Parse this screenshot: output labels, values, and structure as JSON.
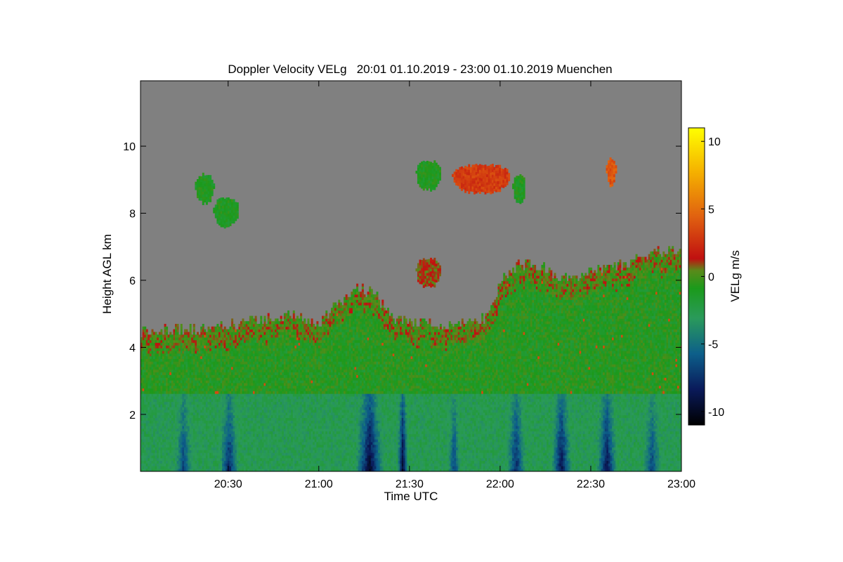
{
  "chart_data": {
    "type": "heatmap",
    "title": "Doppler Velocity VELg   20:01 01.10.2019 - 23:00 01.10.2019 Muenchen",
    "xlabel": "Time UTC",
    "ylabel": "Height AGL km",
    "x_range_minutes_utc": [
      1201,
      1380
    ],
    "y_range_km": [
      0.3,
      11.95
    ],
    "x_ticks": [
      {
        "minutes": 1230,
        "label": "20:30"
      },
      {
        "minutes": 1260,
        "label": "21:00"
      },
      {
        "minutes": 1290,
        "label": "21:30"
      },
      {
        "minutes": 1320,
        "label": "22:00"
      },
      {
        "minutes": 1350,
        "label": "22:30"
      },
      {
        "minutes": 1380,
        "label": "23:00"
      }
    ],
    "y_ticks": [
      2,
      4,
      6,
      8,
      10
    ],
    "colorbar": {
      "label": "VELg m/s",
      "range": [
        -11,
        11
      ],
      "ticks": [
        10,
        5,
        0,
        -5,
        -10
      ],
      "colors": [
        "#000000",
        "#0a1a5a",
        "#0d5f8a",
        "#2a9a5a",
        "#1b9a1b",
        "#5a8a1a",
        "#c01010",
        "#e06010",
        "#f5b000",
        "#ffff00"
      ]
    },
    "no_data_color": "#808080",
    "cloud_top_km": [
      [
        1201,
        4.4
      ],
      [
        1210,
        4.5
      ],
      [
        1220,
        4.5
      ],
      [
        1230,
        4.6
      ],
      [
        1240,
        4.8
      ],
      [
        1250,
        4.9
      ],
      [
        1255,
        4.8
      ],
      [
        1260,
        4.7
      ],
      [
        1265,
        5.2
      ],
      [
        1272,
        5.7
      ],
      [
        1278,
        5.6
      ],
      [
        1285,
        4.8
      ],
      [
        1295,
        4.7
      ],
      [
        1305,
        4.6
      ],
      [
        1315,
        4.8
      ],
      [
        1320,
        5.9
      ],
      [
        1325,
        6.4
      ],
      [
        1330,
        6.5
      ],
      [
        1335,
        6.3
      ],
      [
        1340,
        6.0
      ],
      [
        1345,
        6.1
      ],
      [
        1355,
        6.3
      ],
      [
        1365,
        6.6
      ],
      [
        1372,
        6.8
      ],
      [
        1380,
        6.9
      ]
    ],
    "downdraft_regions": [
      {
        "t_start": 1210,
        "t_end": 1220,
        "min_velocity": -7
      },
      {
        "t_start": 1225,
        "t_end": 1235,
        "min_velocity": -8
      },
      {
        "t_start": 1270,
        "t_end": 1283,
        "min_velocity": -10
      },
      {
        "t_start": 1285,
        "t_end": 1290,
        "min_velocity": -10
      },
      {
        "t_start": 1301,
        "t_end": 1308,
        "min_velocity": -7
      },
      {
        "t_start": 1320,
        "t_end": 1330,
        "min_velocity": -8
      },
      {
        "t_start": 1335,
        "t_end": 1345,
        "min_velocity": -9
      },
      {
        "t_start": 1350,
        "t_end": 1360,
        "min_velocity": -9
      },
      {
        "t_start": 1365,
        "t_end": 1375,
        "min_velocity": -7
      }
    ],
    "upper_cloud_patches": [
      {
        "t_start": 1219,
        "t_end": 1225,
        "h_km": 8.8,
        "velocity": -1
      },
      {
        "t_start": 1225,
        "t_end": 1233,
        "h_km": 8.1,
        "velocity": -1
      },
      {
        "t_start": 1292,
        "t_end": 1300,
        "h_km": 9.2,
        "velocity": -1
      },
      {
        "t_start": 1304,
        "t_end": 1323,
        "h_km": 9.1,
        "velocity": 3
      },
      {
        "t_start": 1324,
        "t_end": 1328,
        "h_km": 8.8,
        "velocity": -1
      },
      {
        "t_start": 1355,
        "t_end": 1358,
        "h_km": 9.3,
        "velocity": 4
      },
      {
        "t_start": 1292,
        "t_end": 1300,
        "h_km": 6.3,
        "velocity": 1
      }
    ]
  }
}
